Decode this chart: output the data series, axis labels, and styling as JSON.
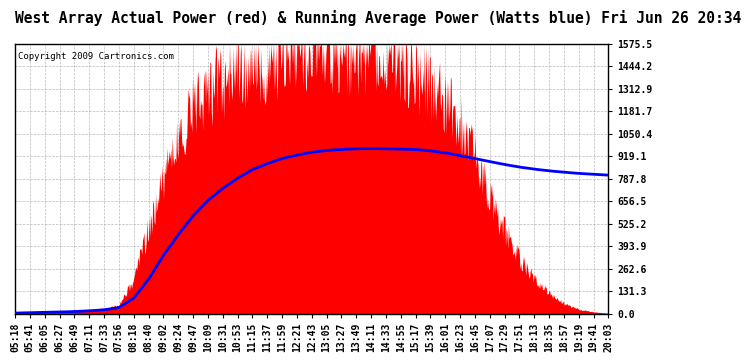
{
  "title": "West Array Actual Power (red) & Running Average Power (Watts blue) Fri Jun 26 20:34",
  "copyright": "Copyright 2009 Cartronics.com",
  "bg_color": "#ffffff",
  "plot_bg_color": "#ffffff",
  "grid_color": "#aaaaaa",
  "ymax": 1575.5,
  "ymin": 0.0,
  "yticks": [
    0.0,
    131.3,
    262.6,
    393.9,
    525.2,
    656.5,
    787.8,
    919.1,
    1050.4,
    1181.7,
    1312.9,
    1444.2,
    1575.5
  ],
  "x_labels": [
    "05:18",
    "05:41",
    "06:05",
    "06:27",
    "06:49",
    "07:11",
    "07:33",
    "07:56",
    "08:18",
    "08:40",
    "09:02",
    "09:24",
    "09:47",
    "10:09",
    "10:31",
    "10:53",
    "11:15",
    "11:37",
    "11:59",
    "12:21",
    "12:43",
    "13:05",
    "13:27",
    "13:49",
    "14:11",
    "14:33",
    "14:55",
    "15:17",
    "15:39",
    "16:01",
    "16:23",
    "16:45",
    "17:07",
    "17:29",
    "17:51",
    "18:13",
    "18:35",
    "18:57",
    "19:19",
    "19:41",
    "20:03"
  ],
  "actual_power": [
    3,
    5,
    8,
    10,
    15,
    20,
    30,
    50,
    200,
    500,
    800,
    1050,
    1200,
    1300,
    1380,
    1420,
    1460,
    1490,
    1510,
    1530,
    1540,
    1545,
    1540,
    1530,
    1510,
    1480,
    1450,
    1420,
    1350,
    1250,
    1100,
    900,
    680,
    480,
    320,
    200,
    120,
    60,
    25,
    10,
    3
  ],
  "running_avg": [
    3,
    5,
    7,
    9,
    12,
    16,
    22,
    35,
    90,
    200,
    340,
    460,
    570,
    660,
    730,
    790,
    840,
    875,
    905,
    925,
    942,
    952,
    958,
    962,
    963,
    962,
    960,
    958,
    950,
    938,
    922,
    905,
    887,
    870,
    855,
    843,
    833,
    825,
    818,
    813,
    808
  ],
  "red_color": "#ff0000",
  "blue_color": "#0000ff",
  "title_fontsize": 10.5,
  "tick_fontsize": 7,
  "copyright_fontsize": 6.5
}
